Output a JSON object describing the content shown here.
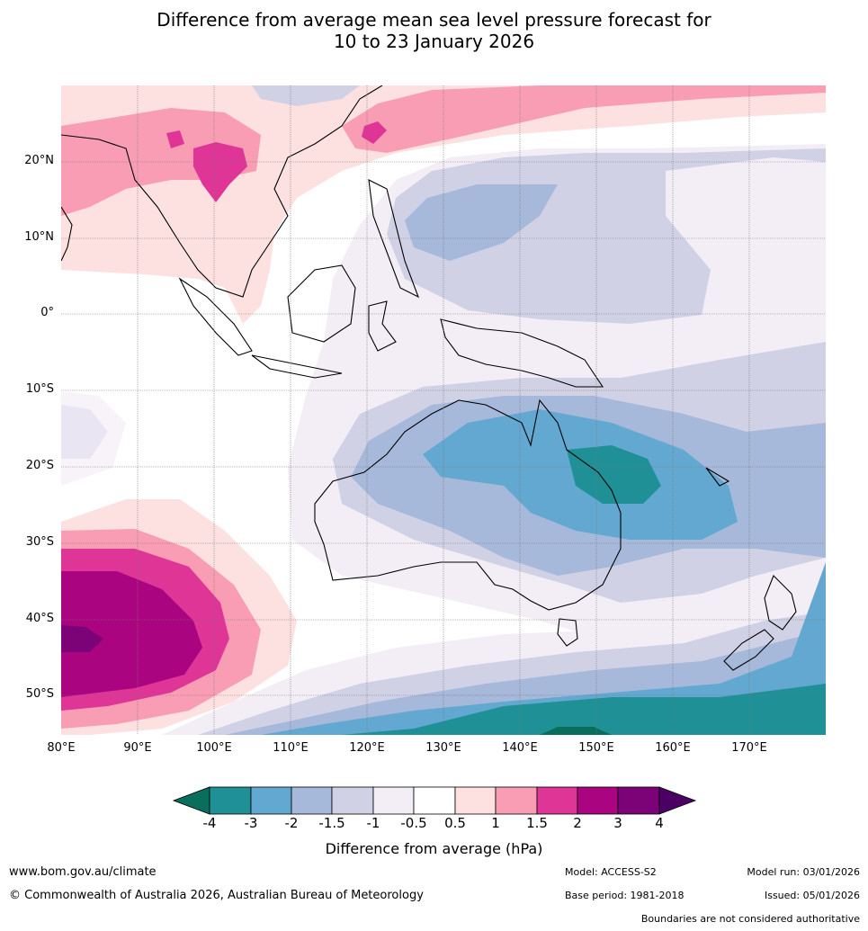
{
  "title_line1": "Difference from average mean sea level pressure forecast for",
  "title_line2": "10 to 23 January 2026",
  "lat_labels": [
    "20°N",
    "10°N",
    "0°",
    "10°S",
    "20°S",
    "30°S",
    "40°S",
    "50°S"
  ],
  "lon_labels": [
    "80°E",
    "90°E",
    "100°E",
    "110°E",
    "120°E",
    "130°E",
    "140°E",
    "150°E",
    "160°E",
    "170°E"
  ],
  "colorbar": {
    "ticks": [
      "-4",
      "-3",
      "-2",
      "-1.5",
      "-1",
      "-0.5",
      "0.5",
      "1",
      "1.5",
      "2",
      "3",
      "4"
    ],
    "colors": [
      "#0a6e5c",
      "#1e9096",
      "#62a8d0",
      "#a6b9da",
      "#d1d1e6",
      "#f3eef6",
      "#ffffff",
      "#fde0e0",
      "#f99db4",
      "#de3597",
      "#aa0480",
      "#7b0377",
      "#4b0064"
    ],
    "title": "Difference from average (hPa)"
  },
  "footer": {
    "url": "www.bom.gov.au/climate",
    "copyright": "© Commonwealth of Australia 2026, Australian Bureau of Meteorology",
    "model": "Model: ACCESS-S2",
    "base_period": "Base period: 1981-2018",
    "model_run": "Model run: 03/01/2026",
    "issued": "Issued: 05/01/2026",
    "disclaimer": "Boundaries are not considered authoritative"
  }
}
